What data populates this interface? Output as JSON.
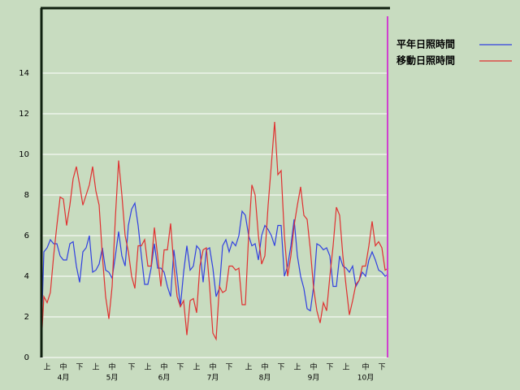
{
  "chart_data": {
    "type": "line",
    "categories": [
      null,
      null,
      "上",
      null,
      null,
      null,
      null,
      "中",
      null,
      null,
      null,
      null,
      "下",
      null,
      null,
      null,
      null,
      "上",
      null,
      null,
      null,
      null,
      "中",
      null,
      null,
      null,
      null,
      null,
      "下",
      null,
      null,
      null,
      null,
      "上",
      null,
      null,
      null,
      null,
      "中",
      null,
      null,
      null,
      null,
      "下",
      null,
      null,
      null,
      null,
      "上",
      null,
      null,
      null,
      null,
      "中",
      null,
      null,
      null,
      null,
      "下",
      null,
      null,
      null,
      null,
      null,
      "上",
      null,
      null,
      null,
      null,
      "中",
      null,
      null,
      null,
      null,
      "下",
      null,
      null,
      null,
      null,
      "上",
      null,
      null,
      null,
      null,
      "中",
      null,
      null,
      null,
      null,
      "下",
      null,
      null,
      null,
      null,
      "上",
      null,
      null,
      null,
      null,
      null,
      "中",
      null,
      null,
      null,
      null,
      "下",
      null,
      null
    ],
    "month_labels": [
      "4月",
      "5月",
      "6月",
      "7月",
      "8月",
      "9月",
      "10月"
    ],
    "series": [
      {
        "name": "平年日照時間",
        "color": "#3040e0",
        "values": [
          0,
          5.2,
          5.4,
          5.8,
          5.6,
          5.6,
          5,
          4.8,
          4.8,
          5.6,
          5.7,
          4.5,
          3.7,
          5.2,
          5.4,
          6,
          4.2,
          4.3,
          4.6,
          5.4,
          4.3,
          4.2,
          3.9,
          5,
          6.2,
          5,
          4.5,
          6.5,
          7.3,
          7.6,
          6.5,
          5,
          3.6,
          3.6,
          4.4,
          5.6,
          4.4,
          4.4,
          4.2,
          3.5,
          3,
          5.3,
          4,
          2.5,
          4.2,
          5.5,
          4.3,
          4.5,
          5.5,
          5.3,
          3.7,
          5.3,
          5.4,
          4.4,
          3,
          3.4,
          5.5,
          5.8,
          5.2,
          5.7,
          5.5,
          6,
          7.2,
          7,
          6,
          5.5,
          5.6,
          4.8,
          6,
          6.5,
          6.3,
          6,
          5.5,
          6.5,
          6.5,
          4,
          4.5,
          5.5,
          6.8,
          5,
          4,
          3.4,
          2.4,
          2.3,
          3.5,
          5.6,
          5.5,
          5.3,
          5.4,
          5,
          3.5,
          3.5,
          5,
          4.5,
          4.4,
          4.2,
          4.5,
          3.5,
          3.8,
          4.2,
          4,
          4.8,
          5.2,
          4.8,
          4.3,
          4.2,
          4,
          4.1
        ]
      },
      {
        "name": "移動日照時間",
        "color": "#e03030",
        "values": [
          0,
          3,
          2.7,
          3.2,
          5,
          6.5,
          7.9,
          7.8,
          6.5,
          7.5,
          8.8,
          9.4,
          8.5,
          7.5,
          8,
          8.5,
          9.4,
          8.2,
          7.5,
          5,
          3,
          1.9,
          3.5,
          6.9,
          9.7,
          8,
          6,
          5.2,
          4,
          3.4,
          5.5,
          5.5,
          5.8,
          4.5,
          4.5,
          6.4,
          5,
          3.5,
          5.3,
          5.3,
          6.6,
          4.5,
          3,
          2.5,
          2.8,
          1.1,
          2.8,
          2.9,
          2.2,
          4.5,
          5.3,
          5.4,
          3.5,
          1.2,
          0.9,
          3.5,
          3.2,
          3.3,
          4.5,
          4.5,
          4.3,
          4.4,
          2.6,
          2.6,
          6,
          8.5,
          8,
          6,
          4.6,
          5,
          7.5,
          9.5,
          11.6,
          9,
          9.2,
          6,
          4,
          5,
          6.5,
          7.5,
          8.4,
          7,
          6.8,
          5.3,
          3.4,
          2.3,
          1.7,
          2.7,
          2.3,
          4,
          5.5,
          7.4,
          7,
          5,
          3.5,
          2.1,
          2.8,
          3.6,
          3.8,
          4.5,
          4.5,
          5.5,
          6.7,
          5.5,
          5.7,
          5.4,
          4.3,
          4.4
        ]
      }
    ],
    "ylim": [
      0,
      17.2
    ],
    "yticks": [
      0,
      2,
      4,
      6,
      8,
      10,
      12,
      14
    ],
    "grid": true,
    "legend": "upper-right"
  }
}
